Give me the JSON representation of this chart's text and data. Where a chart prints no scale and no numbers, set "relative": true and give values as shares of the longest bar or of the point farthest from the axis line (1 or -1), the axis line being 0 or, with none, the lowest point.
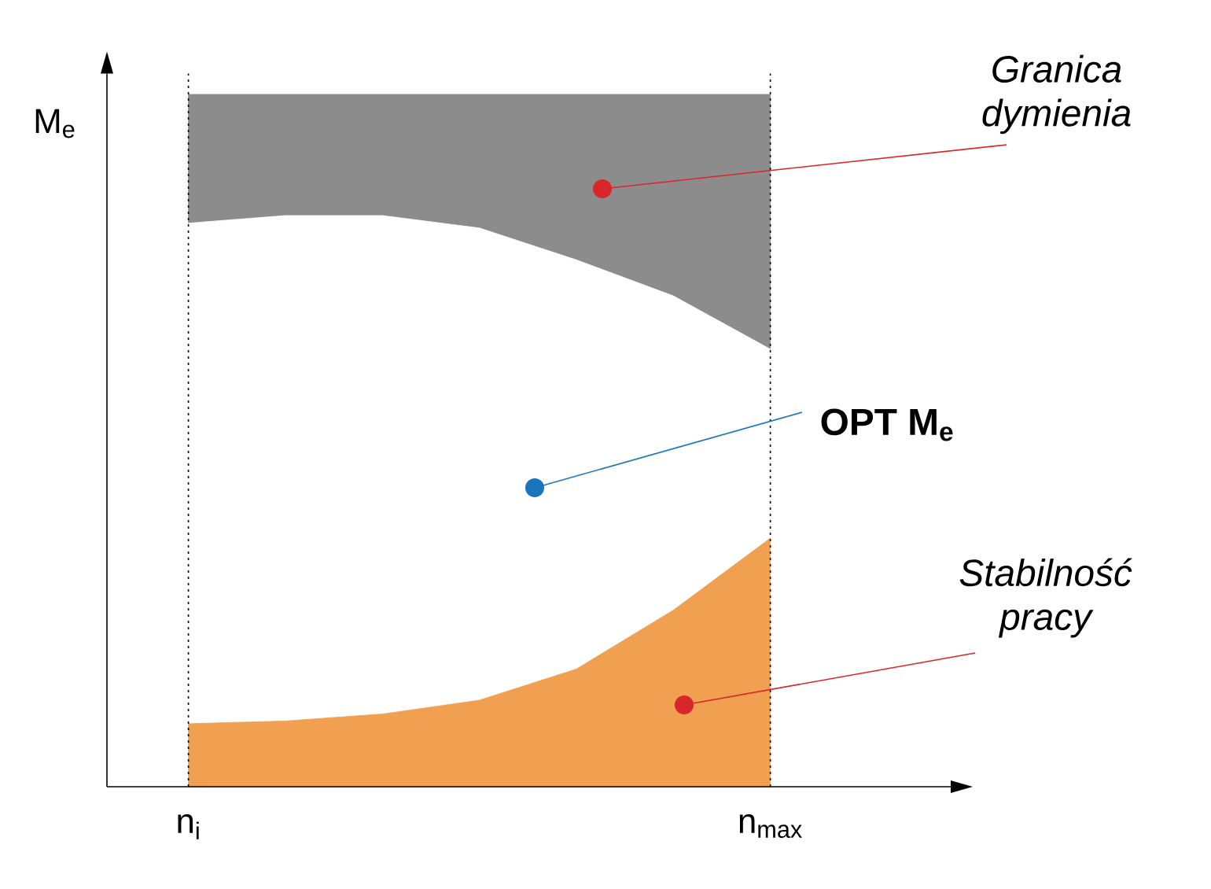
{
  "chart_data": {
    "type": "area",
    "relative": true,
    "stacked": true,
    "ylabel": "M$_{e}$",
    "grid": "x",
    "categories": [
      "n$_{i}$",
      null,
      null,
      null,
      null,
      null,
      "n$_{max}$"
    ],
    "series": [
      {
        "color": "#f0a050",
        "values": [
          0.091,
          0.095,
          0.105,
          0.125,
          0.17,
          0.255,
          0.359
        ]
      },
      {
        "color": "#ffffff",
        "values": [
          0.723,
          0.73,
          0.72,
          0.682,
          0.591,
          0.454,
          0.273
        ]
      },
      {
        "color": "#8c8c8c",
        "values": [
          0.186,
          0.175,
          0.175,
          0.193,
          0.239,
          0.291,
          0.368
        ]
      }
    ],
    "annotations": [
      "Granica dymienia",
      "OPT M$_{e}$",
      "Stabilność pracy"
    ]
  }
}
